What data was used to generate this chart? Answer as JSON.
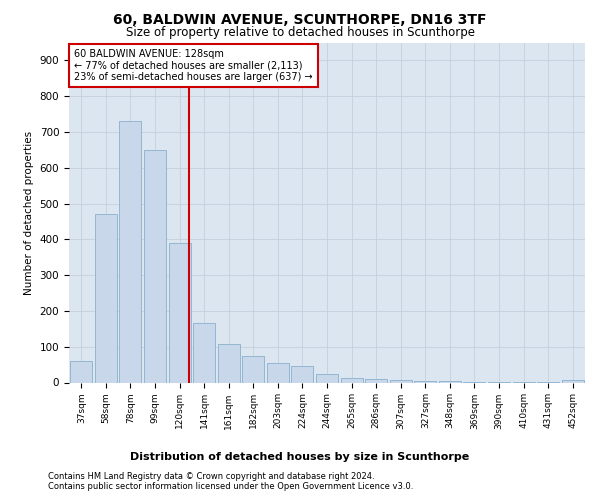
{
  "title": "60, BALDWIN AVENUE, SCUNTHORPE, DN16 3TF",
  "subtitle": "Size of property relative to detached houses in Scunthorpe",
  "xlabel": "Distribution of detached houses by size in Scunthorpe",
  "ylabel": "Number of detached properties",
  "footer1": "Contains HM Land Registry data © Crown copyright and database right 2024.",
  "footer2": "Contains public sector information licensed under the Open Government Licence v3.0.",
  "bar_color": "#c8d8ea",
  "bar_edge_color": "#8ab0cc",
  "annotation_box_color": "#ffffff",
  "annotation_border_color": "#cc0000",
  "vline_color": "#cc0000",
  "grid_color": "#c0ccd8",
  "bg_color": "#dce6f0",
  "categories": [
    "37sqm",
    "58sqm",
    "78sqm",
    "99sqm",
    "120sqm",
    "141sqm",
    "161sqm",
    "182sqm",
    "203sqm",
    "224sqm",
    "244sqm",
    "265sqm",
    "286sqm",
    "307sqm",
    "327sqm",
    "348sqm",
    "369sqm",
    "390sqm",
    "410sqm",
    "431sqm",
    "452sqm"
  ],
  "values": [
    60,
    470,
    730,
    650,
    390,
    165,
    108,
    75,
    55,
    45,
    25,
    12,
    10,
    7,
    5,
    4,
    2,
    1,
    1,
    1,
    8
  ],
  "annotation_text1": "60 BALDWIN AVENUE: 128sqm",
  "annotation_text2": "← 77% of detached houses are smaller (2,113)",
  "annotation_text3": "23% of semi-detached houses are larger (637) →",
  "ylim": [
    0,
    950
  ],
  "yticks": [
    0,
    100,
    200,
    300,
    400,
    500,
    600,
    700,
    800,
    900
  ]
}
